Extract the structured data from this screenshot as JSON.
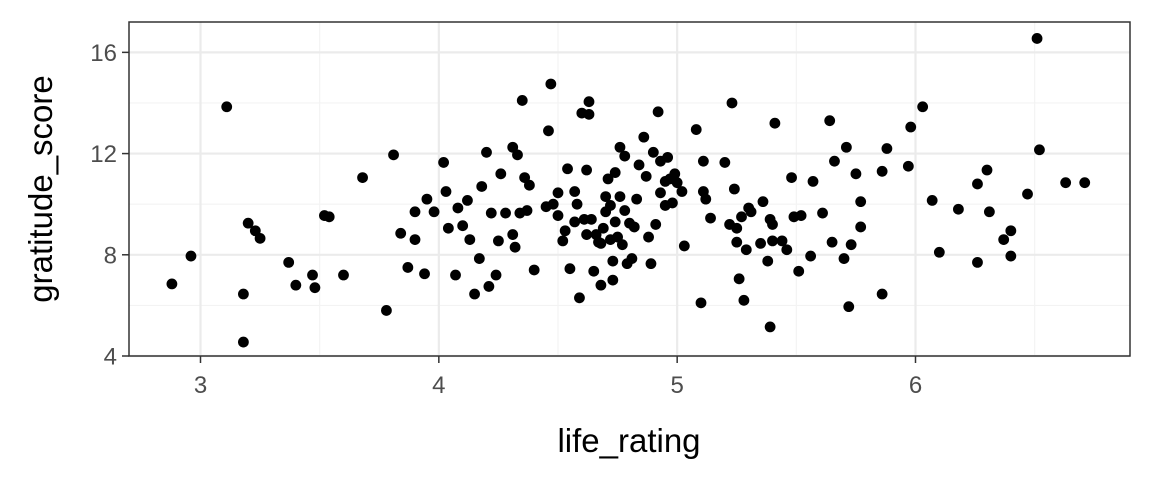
{
  "chart_data": {
    "type": "scatter",
    "xlabel": "life_rating",
    "ylabel": "gratitude_score",
    "xlim": [
      2.7,
      6.9
    ],
    "ylim": [
      4,
      17.2
    ],
    "x_ticks": [
      3,
      4,
      5,
      6
    ],
    "y_ticks": [
      4,
      8,
      12,
      16
    ],
    "x_tick_labels": [
      "3",
      "4",
      "5",
      "6"
    ],
    "y_tick_labels": [
      "4",
      "8",
      "12",
      "16"
    ],
    "grid": true,
    "legend": "none",
    "point_color": "#000000",
    "points": [
      [
        2.88,
        6.85
      ],
      [
        2.96,
        7.95
      ],
      [
        3.11,
        13.85
      ],
      [
        3.18,
        4.55
      ],
      [
        3.18,
        6.45
      ],
      [
        3.2,
        9.25
      ],
      [
        3.23,
        8.95
      ],
      [
        3.25,
        8.65
      ],
      [
        3.37,
        7.7
      ],
      [
        3.4,
        6.8
      ],
      [
        3.47,
        7.2
      ],
      [
        3.48,
        6.7
      ],
      [
        3.52,
        9.55
      ],
      [
        3.54,
        9.5
      ],
      [
        3.6,
        7.2
      ],
      [
        3.68,
        11.05
      ],
      [
        3.78,
        5.8
      ],
      [
        3.81,
        11.95
      ],
      [
        3.84,
        8.85
      ],
      [
        3.87,
        7.5
      ],
      [
        3.9,
        8.6
      ],
      [
        3.9,
        9.7
      ],
      [
        3.94,
        7.25
      ],
      [
        3.95,
        10.2
      ],
      [
        3.98,
        9.7
      ],
      [
        4.02,
        11.65
      ],
      [
        4.03,
        10.5
      ],
      [
        4.04,
        9.05
      ],
      [
        4.07,
        7.2
      ],
      [
        4.08,
        9.85
      ],
      [
        4.1,
        9.15
      ],
      [
        4.12,
        10.15
      ],
      [
        4.13,
        8.6
      ],
      [
        4.15,
        6.45
      ],
      [
        4.17,
        7.85
      ],
      [
        4.18,
        10.7
      ],
      [
        4.2,
        12.05
      ],
      [
        4.21,
        6.75
      ],
      [
        4.22,
        9.65
      ],
      [
        4.24,
        7.2
      ],
      [
        4.25,
        8.55
      ],
      [
        4.26,
        11.2
      ],
      [
        4.28,
        9.65
      ],
      [
        4.31,
        12.25
      ],
      [
        4.31,
        8.8
      ],
      [
        4.32,
        8.3
      ],
      [
        4.33,
        11.95
      ],
      [
        4.34,
        9.65
      ],
      [
        4.35,
        14.1
      ],
      [
        4.36,
        11.05
      ],
      [
        4.37,
        9.75
      ],
      [
        4.38,
        10.75
      ],
      [
        4.4,
        7.4
      ],
      [
        4.45,
        9.9
      ],
      [
        4.46,
        12.9
      ],
      [
        4.47,
        14.75
      ],
      [
        4.48,
        10.0
      ],
      [
        4.5,
        9.55
      ],
      [
        4.5,
        10.45
      ],
      [
        4.52,
        8.55
      ],
      [
        4.53,
        8.95
      ],
      [
        4.54,
        11.4
      ],
      [
        4.55,
        7.45
      ],
      [
        4.57,
        10.5
      ],
      [
        4.57,
        9.3
      ],
      [
        4.58,
        10.0
      ],
      [
        4.59,
        6.3
      ],
      [
        4.6,
        13.6
      ],
      [
        4.61,
        9.4
      ],
      [
        4.62,
        11.35
      ],
      [
        4.62,
        8.8
      ],
      [
        4.63,
        14.05
      ],
      [
        4.63,
        13.55
      ],
      [
        4.64,
        9.4
      ],
      [
        4.65,
        7.35
      ],
      [
        4.66,
        8.8
      ],
      [
        4.67,
        8.5
      ],
      [
        4.68,
        6.8
      ],
      [
        4.68,
        8.45
      ],
      [
        4.69,
        9.05
      ],
      [
        4.7,
        10.3
      ],
      [
        4.7,
        9.7
      ],
      [
        4.71,
        11.0
      ],
      [
        4.72,
        8.6
      ],
      [
        4.72,
        9.95
      ],
      [
        4.73,
        7.0
      ],
      [
        4.73,
        7.75
      ],
      [
        4.74,
        11.25
      ],
      [
        4.74,
        9.3
      ],
      [
        4.75,
        8.7
      ],
      [
        4.76,
        12.25
      ],
      [
        4.76,
        10.3
      ],
      [
        4.77,
        8.4
      ],
      [
        4.78,
        9.75
      ],
      [
        4.78,
        11.9
      ],
      [
        4.79,
        7.65
      ],
      [
        4.8,
        9.25
      ],
      [
        4.81,
        7.85
      ],
      [
        4.82,
        9.1
      ],
      [
        4.83,
        10.2
      ],
      [
        4.84,
        11.55
      ],
      [
        4.86,
        12.65
      ],
      [
        4.87,
        11.1
      ],
      [
        4.88,
        8.7
      ],
      [
        4.89,
        7.65
      ],
      [
        4.9,
        12.05
      ],
      [
        4.91,
        9.2
      ],
      [
        4.92,
        13.65
      ],
      [
        4.93,
        11.7
      ],
      [
        4.93,
        10.45
      ],
      [
        4.95,
        9.95
      ],
      [
        4.95,
        10.9
      ],
      [
        4.96,
        11.85
      ],
      [
        4.97,
        11.0
      ],
      [
        4.98,
        10.05
      ],
      [
        4.99,
        11.2
      ],
      [
        5.0,
        10.85
      ],
      [
        5.02,
        10.5
      ],
      [
        5.03,
        8.35
      ],
      [
        5.08,
        12.95
      ],
      [
        5.1,
        6.1
      ],
      [
        5.11,
        11.7
      ],
      [
        5.11,
        10.5
      ],
      [
        5.12,
        10.2
      ],
      [
        5.14,
        9.45
      ],
      [
        5.2,
        11.65
      ],
      [
        5.22,
        9.2
      ],
      [
        5.23,
        14.0
      ],
      [
        5.24,
        10.6
      ],
      [
        5.25,
        9.05
      ],
      [
        5.25,
        8.5
      ],
      [
        5.26,
        7.05
      ],
      [
        5.27,
        9.5
      ],
      [
        5.28,
        6.2
      ],
      [
        5.29,
        8.2
      ],
      [
        5.3,
        9.85
      ],
      [
        5.31,
        9.7
      ],
      [
        5.35,
        8.45
      ],
      [
        5.36,
        10.1
      ],
      [
        5.38,
        7.75
      ],
      [
        5.39,
        9.4
      ],
      [
        5.39,
        5.15
      ],
      [
        5.4,
        8.55
      ],
      [
        5.4,
        9.2
      ],
      [
        5.41,
        13.2
      ],
      [
        5.44,
        8.55
      ],
      [
        5.46,
        8.2
      ],
      [
        5.48,
        11.05
      ],
      [
        5.49,
        9.5
      ],
      [
        5.51,
        7.35
      ],
      [
        5.52,
        9.55
      ],
      [
        5.56,
        7.95
      ],
      [
        5.57,
        10.9
      ],
      [
        5.61,
        9.65
      ],
      [
        5.64,
        13.3
      ],
      [
        5.65,
        8.5
      ],
      [
        5.66,
        11.7
      ],
      [
        5.7,
        7.85
      ],
      [
        5.71,
        12.25
      ],
      [
        5.72,
        5.95
      ],
      [
        5.73,
        8.4
      ],
      [
        5.75,
        11.2
      ],
      [
        5.77,
        9.1
      ],
      [
        5.77,
        10.1
      ],
      [
        5.86,
        11.3
      ],
      [
        5.86,
        6.45
      ],
      [
        5.88,
        12.2
      ],
      [
        5.97,
        11.5
      ],
      [
        5.98,
        13.05
      ],
      [
        6.03,
        13.85
      ],
      [
        6.07,
        10.15
      ],
      [
        6.1,
        8.1
      ],
      [
        6.18,
        9.8
      ],
      [
        6.26,
        7.7
      ],
      [
        6.26,
        10.8
      ],
      [
        6.3,
        11.35
      ],
      [
        6.31,
        9.7
      ],
      [
        6.37,
        8.6
      ],
      [
        6.4,
        8.95
      ],
      [
        6.4,
        7.95
      ],
      [
        6.47,
        10.4
      ],
      [
        6.51,
        16.55
      ],
      [
        6.52,
        12.15
      ],
      [
        6.63,
        10.85
      ],
      [
        6.71,
        10.85
      ]
    ]
  }
}
